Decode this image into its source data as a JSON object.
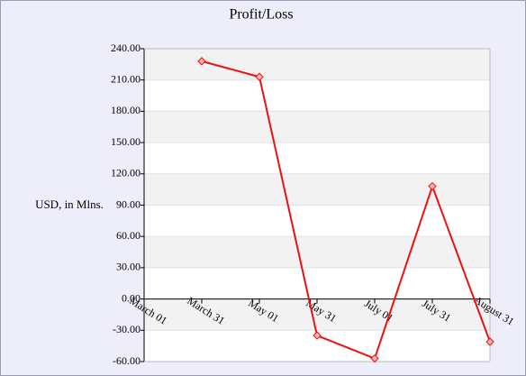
{
  "chart_data": {
    "type": "line",
    "title": "Profit/Loss",
    "y_label": "USD, in Mlns.",
    "categories": [
      "March 01",
      "March 31",
      "May 01",
      "May 31",
      "July 01",
      "July 31",
      "August 31"
    ],
    "series": [
      {
        "name": "Profit/Loss",
        "color": "#ee1111",
        "values": [
          null,
          228,
          213,
          -35,
          -57,
          108,
          -41
        ]
      }
    ],
    "ylim": [
      -60,
      240
    ],
    "yticks": [
      {
        "value": -60,
        "label": "-60.00"
      },
      {
        "value": -30,
        "label": "-30.00"
      },
      {
        "value": 0,
        "label": "0.00"
      },
      {
        "value": 30,
        "label": "30.00"
      },
      {
        "value": 60,
        "label": "60.00"
      },
      {
        "value": 90,
        "label": "90.00"
      },
      {
        "value": 120,
        "label": "120.00"
      },
      {
        "value": 150,
        "label": "150.00"
      },
      {
        "value": 180,
        "label": "180.00"
      },
      {
        "value": 210,
        "label": "210.00"
      },
      {
        "value": 240,
        "label": "240.00"
      }
    ],
    "grid": true
  }
}
